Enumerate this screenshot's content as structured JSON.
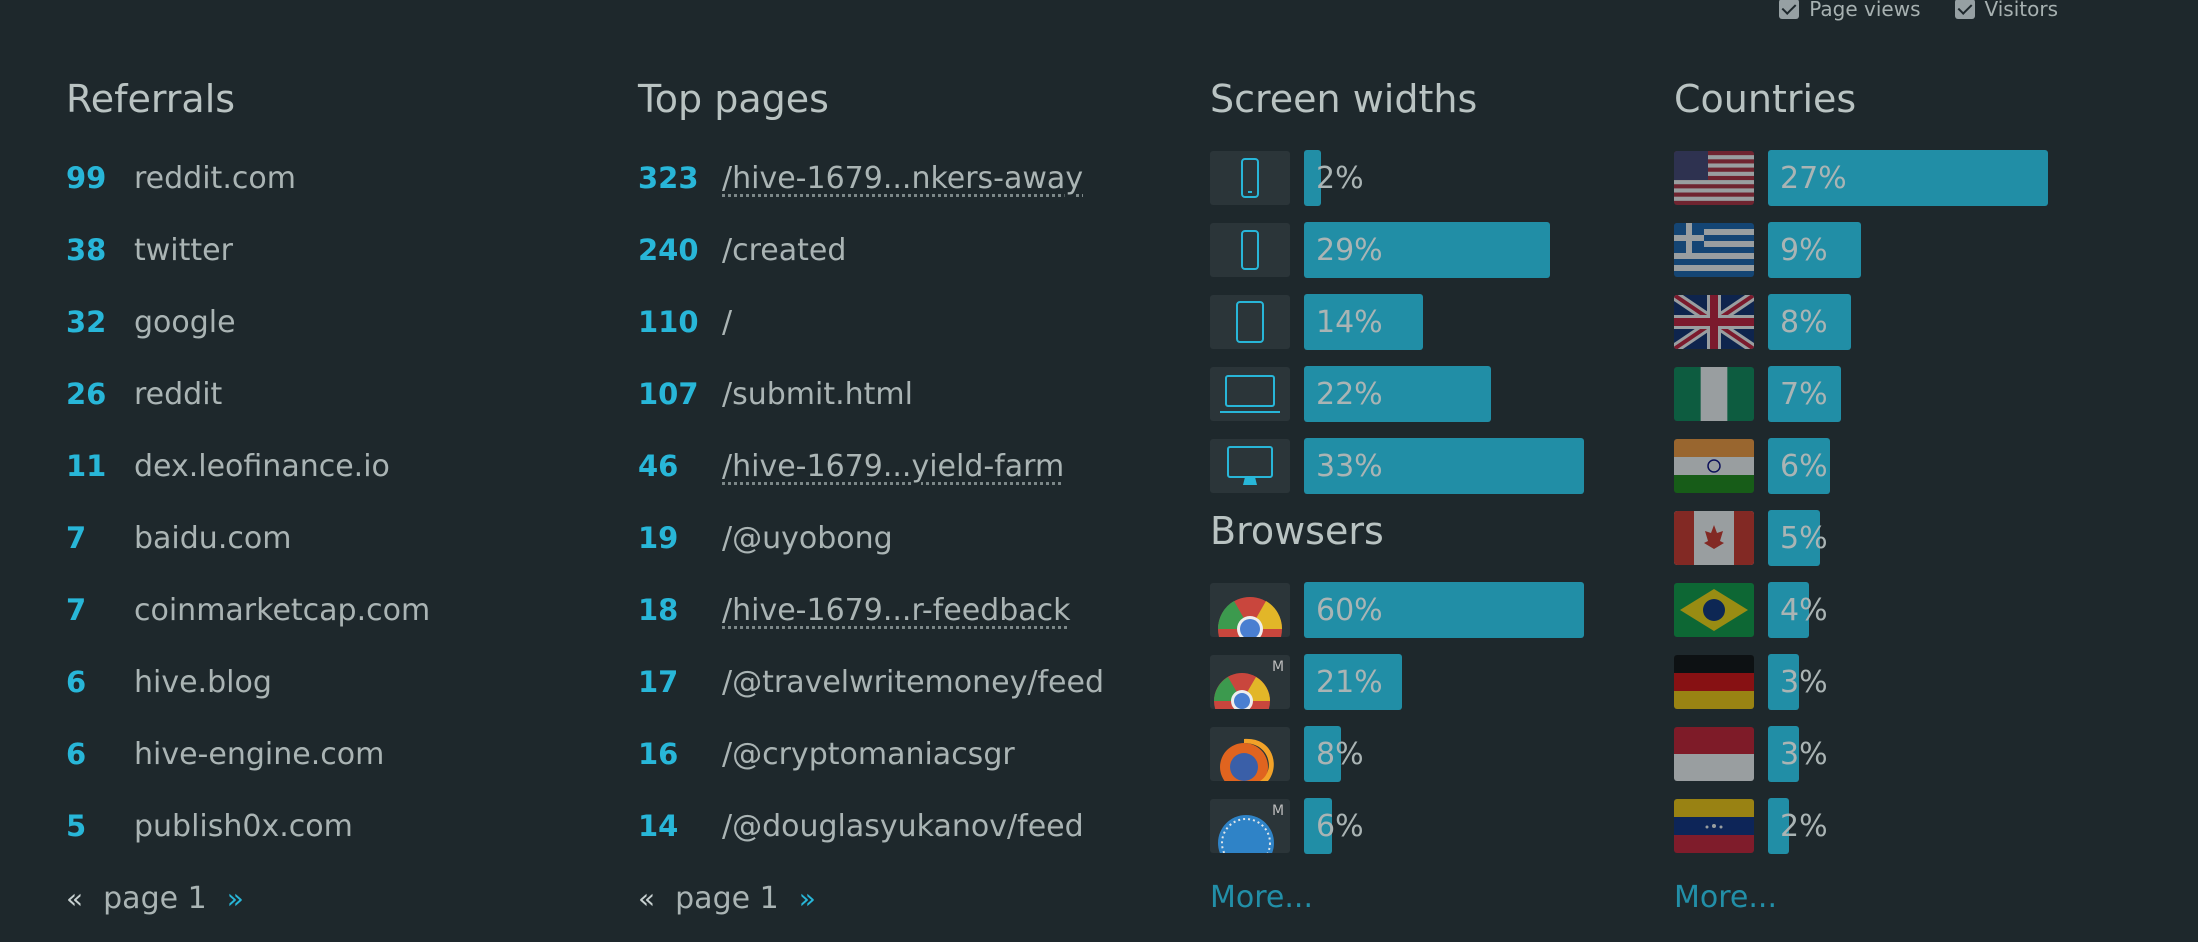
{
  "legend": {
    "page_views": "Page views",
    "visitors": "Visitors"
  },
  "referrals": {
    "title": "Referrals",
    "items": [
      {
        "count": "99",
        "name": "reddit.com"
      },
      {
        "count": "38",
        "name": "twitter"
      },
      {
        "count": "32",
        "name": "google"
      },
      {
        "count": "26",
        "name": "reddit"
      },
      {
        "count": "11",
        "name": "dex.leofinance.io"
      },
      {
        "count": "7",
        "name": "baidu.com"
      },
      {
        "count": "7",
        "name": "coinmarketcap.com"
      },
      {
        "count": "6",
        "name": "hive.blog"
      },
      {
        "count": "6",
        "name": "hive-engine.com"
      },
      {
        "count": "5",
        "name": "publish0x.com"
      }
    ],
    "pager": {
      "prev": "«",
      "label": "page 1",
      "next": "»"
    }
  },
  "top_pages": {
    "title": "Top pages",
    "items": [
      {
        "count": "323",
        "path": "/hive-1679...nkers-away"
      },
      {
        "count": "240",
        "path": "/created"
      },
      {
        "count": "110",
        "path": "/"
      },
      {
        "count": "107",
        "path": "/submit.html"
      },
      {
        "count": "46",
        "path": "/hive-1679...yield-farm"
      },
      {
        "count": "19",
        "path": "/@uyobong"
      },
      {
        "count": "18",
        "path": "/hive-1679...r-feedback"
      },
      {
        "count": "17",
        "path": "/@travelwritemoney/feed"
      },
      {
        "count": "16",
        "path": "/@cryptomaniacsgr"
      },
      {
        "count": "14",
        "path": "/@douglasyukanov/feed"
      }
    ],
    "pager": {
      "prev": "«",
      "label": "page 1",
      "next": "»"
    }
  },
  "screen_widths": {
    "title": "Screen widths",
    "items": [
      {
        "icon": "phone-small-icon",
        "pct": "2%",
        "value": 2
      },
      {
        "icon": "phone-icon",
        "pct": "29%",
        "value": 29
      },
      {
        "icon": "tablet-icon",
        "pct": "14%",
        "value": 14
      },
      {
        "icon": "laptop-icon",
        "pct": "22%",
        "value": 22
      },
      {
        "icon": "desktop-icon",
        "pct": "33%",
        "value": 33
      }
    ]
  },
  "browsers": {
    "title": "Browsers",
    "items": [
      {
        "icon": "chrome-icon",
        "pct": "60%",
        "value": 60
      },
      {
        "icon": "chrome-mobile-icon",
        "pct": "21%",
        "value": 21
      },
      {
        "icon": "firefox-icon",
        "pct": "8%",
        "value": 8
      },
      {
        "icon": "safari-mobile-icon",
        "pct": "6%",
        "value": 6
      }
    ],
    "more": "More..."
  },
  "countries": {
    "title": "Countries",
    "items": [
      {
        "flag": "us-flag-icon",
        "pct": "27%",
        "value": 27
      },
      {
        "flag": "greece-flag-icon",
        "pct": "9%",
        "value": 9
      },
      {
        "flag": "uk-flag-icon",
        "pct": "8%",
        "value": 8
      },
      {
        "flag": "nigeria-flag-icon",
        "pct": "7%",
        "value": 7
      },
      {
        "flag": "india-flag-icon",
        "pct": "6%",
        "value": 6
      },
      {
        "flag": "canada-flag-icon",
        "pct": "5%",
        "value": 5
      },
      {
        "flag": "brazil-flag-icon",
        "pct": "4%",
        "value": 4
      },
      {
        "flag": "germany-flag-icon",
        "pct": "3%",
        "value": 3
      },
      {
        "flag": "indonesia-flag-icon",
        "pct": "3%",
        "value": 3
      },
      {
        "flag": "venezuela-flag-icon",
        "pct": "2%",
        "value": 2
      }
    ],
    "more": "More..."
  },
  "colors": {
    "accent": "#28b6d8",
    "bar": "#218ea6",
    "background": "#1e282c"
  }
}
